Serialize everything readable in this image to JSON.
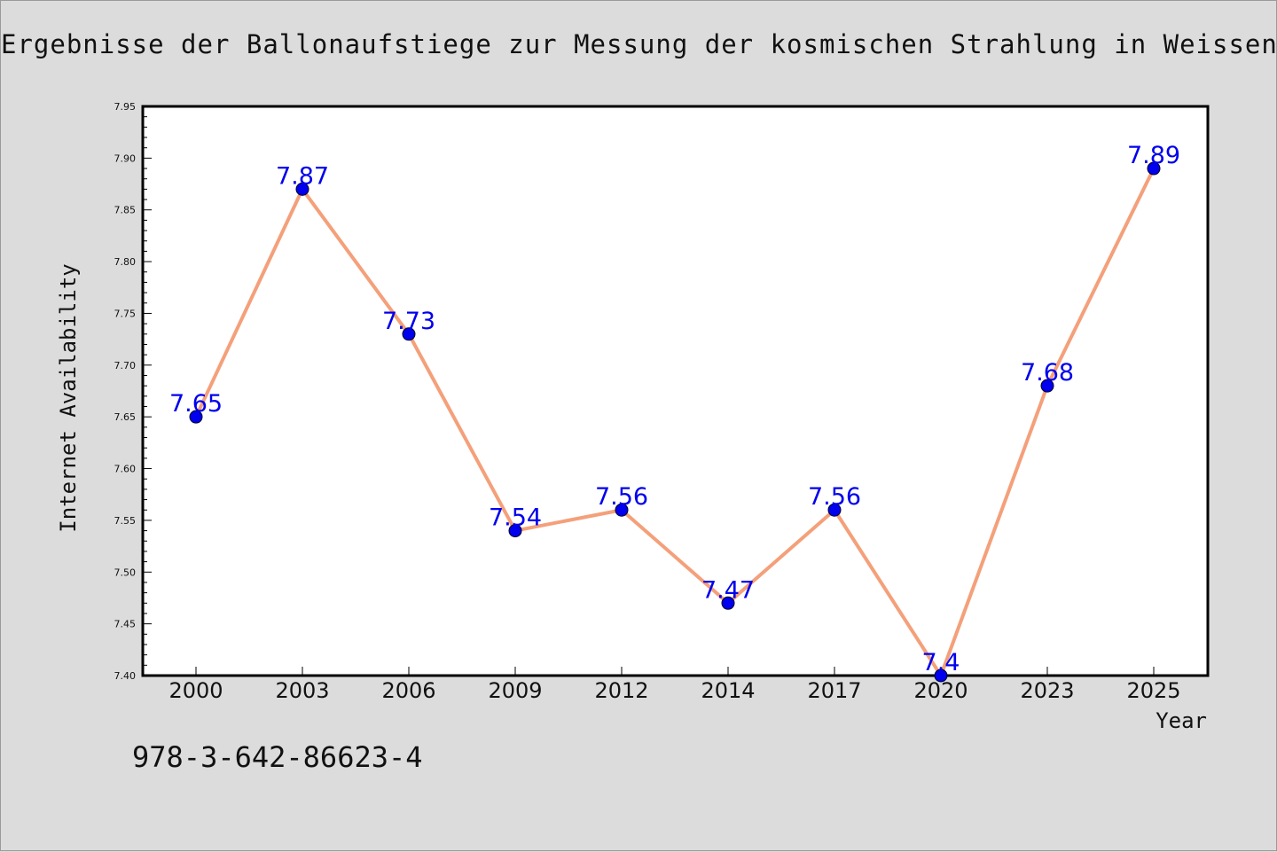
{
  "chart_data": {
    "type": "line",
    "title": "Ergebnisse der Ballonaufstiege zur Messung der kosmischen Strahlung in Weissenau",
    "xlabel": "Year",
    "ylabel": "Internet Availability",
    "categories": [
      "2000",
      "2003",
      "2006",
      "2009",
      "2012",
      "2014",
      "2017",
      "2020",
      "2023",
      "2025"
    ],
    "series": [
      {
        "values": [
          7.65,
          7.87,
          7.73,
          7.54,
          7.56,
          7.47,
          7.56,
          7.4,
          7.68,
          7.89
        ],
        "data_labels": [
          "7.65",
          "7.87",
          "7.73",
          "7.54",
          "7.56",
          "7.47",
          "7.56",
          "7.4",
          "7.68",
          "7.89"
        ],
        "line_color": "#f4a07a",
        "marker_color": "#0000ee",
        "label_color": "#0000ee"
      }
    ],
    "ylim": [
      7.4,
      7.95
    ],
    "yticks": [
      "7.40",
      "7.45",
      "7.50",
      "7.55",
      "7.60",
      "7.65",
      "7.70",
      "7.75",
      "7.80",
      "7.85",
      "7.90",
      "7.95"
    ],
    "grid": false,
    "legend": "none"
  },
  "annotation": "978-3-642-86623-4"
}
